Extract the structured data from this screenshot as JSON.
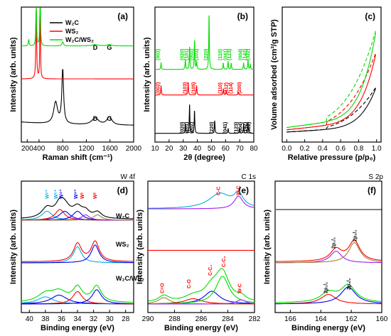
{
  "colors": {
    "black": "#000000",
    "red": "#ff0000",
    "green": "#00dd00",
    "blue": "#0000ee",
    "cyan": "#00b0e0",
    "olive": "#a08040",
    "purple": "#a020f0",
    "gray": "#888888"
  },
  "chart_data": [
    {
      "panel": "(a)",
      "type": "line",
      "xlabel": "Raman shift (cm⁻¹)",
      "ylabel": "Intensity (arb. units)",
      "xlim": [
        100,
        2000
      ],
      "xticks": [
        "200",
        "400",
        "800",
        "1200",
        "1600",
        "2000"
      ],
      "legend": [
        "W₂C",
        "WS₂",
        "W₂C/WS₂"
      ],
      "annotations": [
        "D",
        "G",
        "D",
        "G"
      ],
      "series": [
        {
          "name": "W₂C",
          "color": "black",
          "peaks": [
            [
              680,
              0.8,
              40
            ],
            [
              800,
              2.0,
              18
            ],
            [
              1350,
              0.25,
              70
            ],
            [
              1590,
              0.3,
              50
            ]
          ],
          "base": 0.4,
          "offset": 0
        },
        {
          "name": "WS₂",
          "color": "red",
          "peaks": [
            [
              352,
              3.0,
              7
            ],
            [
              418,
              2.7,
              6
            ]
          ],
          "base": 0.03,
          "offset": 2.1
        },
        {
          "name": "W₂C/WS₂",
          "color": "green",
          "peaks": [
            [
              225,
              0.25,
              8
            ],
            [
              352,
              2.0,
              6
            ],
            [
              418,
              3.4,
              5
            ],
            [
              800,
              0.15,
              15
            ],
            [
              1350,
              0.05,
              60
            ],
            [
              1590,
              0.06,
              40
            ]
          ],
          "base": 0.05,
          "offset": 3.3
        }
      ]
    },
    {
      "panel": "(b)",
      "type": "line",
      "xlabel": "2θ (degree)",
      "ylabel": "Intensity (arb. units)",
      "xlim": [
        10,
        80
      ],
      "xticks": [
        "10",
        "20",
        "30",
        "40",
        "50",
        "60",
        "70",
        "80"
      ],
      "labels_black": [
        "(020)",
        "(101)",
        "(002)",
        "(220)",
        "(041)",
        "(123)",
        "(004)",
        "(142)",
        "(322)"
      ],
      "labels_red": [
        "(002)",
        "(103)",
        "(105)",
        "(110)",
        "(112)",
        "(114)",
        "(200)"
      ],
      "labels_green": [
        "(002)",
        "(020)",
        "(101)",
        "(002)",
        "(103)",
        "(220)",
        "(110)",
        "(041)",
        "(123)",
        "(004)",
        "(142)",
        "(322)"
      ],
      "series": [
        {
          "name": "W₂C",
          "color": "black",
          "peaks": [
            [
              31.5,
              0.3
            ],
            [
              34.5,
              0.9
            ],
            [
              38.0,
              0.7
            ],
            [
              52.3,
              0.4
            ],
            [
              61.8,
              0.15
            ],
            [
              69.8,
              0.15
            ],
            [
              72.8,
              0.3
            ],
            [
              75.9,
              0.35
            ],
            [
              81.5,
              0.2
            ]
          ],
          "offset": 0
        },
        {
          "name": "WS₂",
          "color": "red",
          "peaks": [
            [
              14.3,
              0.3
            ],
            [
              33.5,
              0.4
            ],
            [
              39.5,
              0.3
            ],
            [
              58.4,
              0.2
            ],
            [
              60.5,
              0.12
            ],
            [
              69.0,
              0.1
            ]
          ],
          "offset": 1.2
        },
        {
          "name": "W₂C/WS₂",
          "color": "green",
          "peaks": [
            [
              14.3,
              0.2
            ],
            [
              31.5,
              0.3
            ],
            [
              34.5,
              0.7
            ],
            [
              38.0,
              0.9
            ],
            [
              39.5,
              0.25
            ],
            [
              48.3,
              1.7
            ],
            [
              58.4,
              0.2
            ],
            [
              61.8,
              0.25
            ],
            [
              64.0,
              0.2
            ],
            [
              72.8,
              0.2
            ],
            [
              75.9,
              0.3
            ],
            [
              77.5,
              0.15
            ]
          ],
          "offset": 2.0
        }
      ]
    },
    {
      "panel": "(c)",
      "type": "line",
      "xlabel": "Relative pressure (p/p₀)",
      "ylabel": "Volume adsorbed (cm³/g STP)",
      "xlim": [
        -0.05,
        1.05
      ],
      "xticks": [
        "0.0",
        "0.2",
        "0.4",
        "0.6",
        "0.8",
        "1.0"
      ],
      "series": [
        {
          "name": "W₂C",
          "color": "black",
          "start": 0.2,
          "end": 6.3
        },
        {
          "name": "WS₂",
          "color": "red",
          "start": 0.5,
          "end": 11
        },
        {
          "name": "W₂C/WS₂",
          "color": "green",
          "start": 0.8,
          "end": 14
        }
      ]
    },
    {
      "panel": "(d)",
      "type": "line",
      "corner": "W 4f",
      "xlabel": "Binding energy (eV)",
      "ylabel": "Intensity (arb. units)",
      "xlim": [
        41,
        27
      ],
      "xticks": [
        "40",
        "38",
        "36",
        "34",
        "32",
        "30",
        "28"
      ],
      "labels": [
        "W⁶⁺",
        "W⁶⁺",
        "W⁴⁺",
        "W⁴⁺",
        "Wᶜ",
        "Wᶜ"
      ],
      "legend": [
        "W₂C",
        "WS₂",
        "W₂C/WS₂"
      ]
    },
    {
      "panel": "(e)",
      "type": "line",
      "corner": "C 1s",
      "xlabel": "Binding energy (eV)",
      "ylabel": "Intensity (arb. units)",
      "xlim": [
        290,
        282
      ],
      "xticks": [
        "290",
        "288",
        "286",
        "284",
        "282"
      ],
      "labels": [
        "C-C",
        "W-C",
        "C=O",
        "C-O",
        "C-C₁",
        "C-C₂",
        "W-C"
      ]
    },
    {
      "panel": "(f)",
      "type": "line",
      "corner": "S 2p",
      "xlabel": "Binding energy (eV)",
      "ylabel": "Intensity (arb. units)",
      "xlim": [
        167,
        160
      ],
      "xticks": [
        "166",
        "164",
        "162",
        "160"
      ],
      "labels": [
        "2p₁/₂",
        "2p₃/₂",
        "2p₁/₂",
        "2p₃/₂"
      ]
    }
  ]
}
